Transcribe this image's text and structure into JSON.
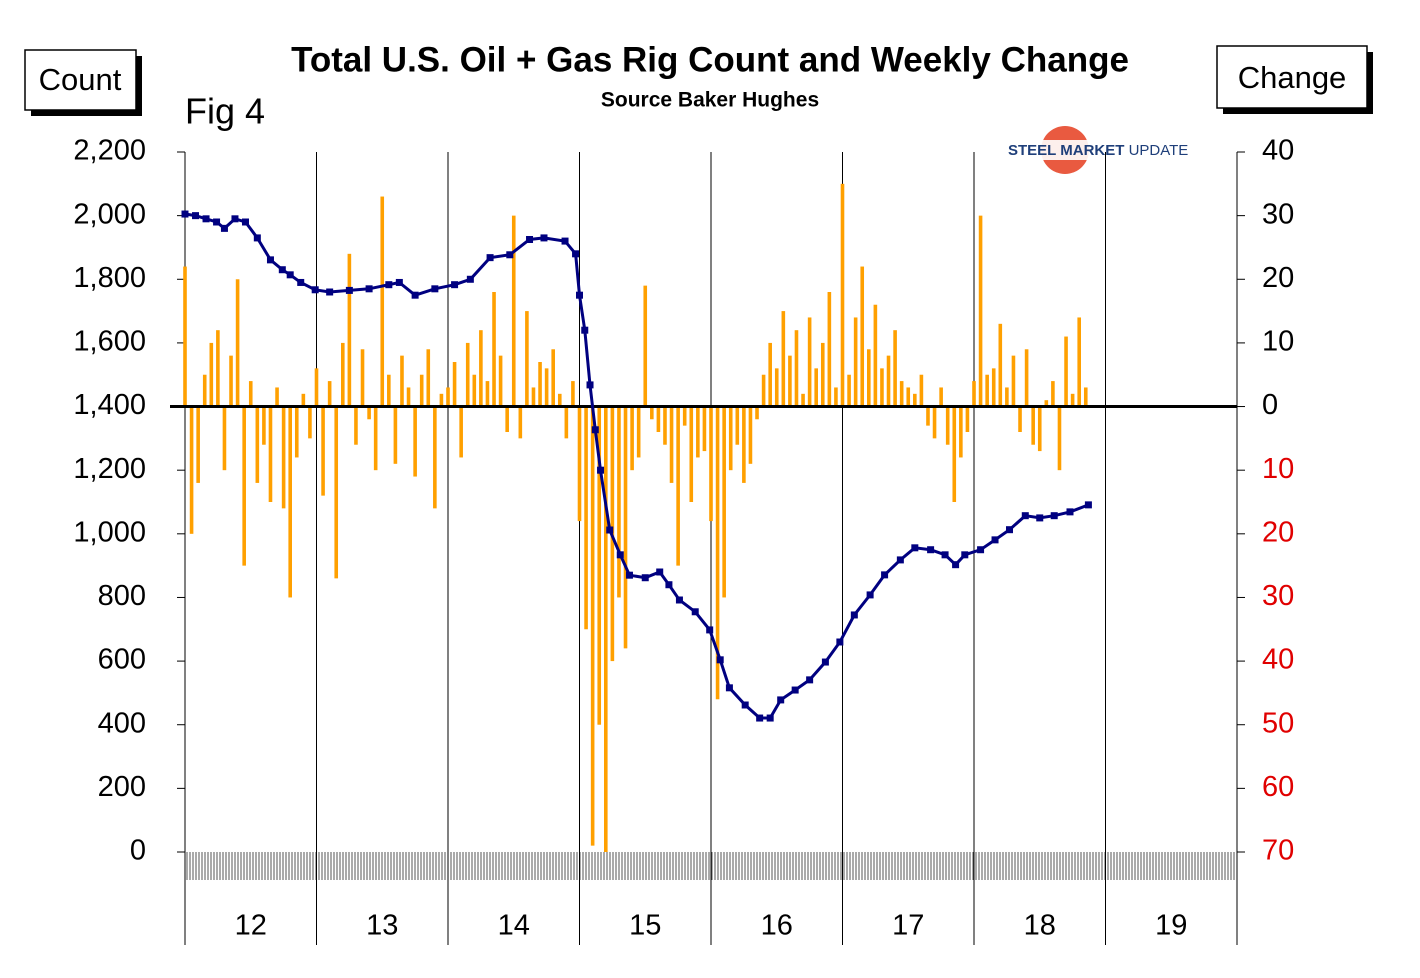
{
  "chart_data": {
    "type": "combo",
    "title": "Total U.S. Oil + Gas Rig Count and Weekly Change",
    "subtitle": "Source Baker Hughes",
    "figure_label": "Fig 4",
    "y_label": "Count",
    "y2_label": "Change",
    "logo": {
      "bold": "STEEL MARKET",
      "light": "UPDATE"
    },
    "xlim": [
      2012,
      2020
    ],
    "xticks": [
      {
        "value": 2012,
        "label": "12"
      },
      {
        "value": 2013,
        "label": "13"
      },
      {
        "value": 2014,
        "label": "14"
      },
      {
        "value": 2015,
        "label": "15"
      },
      {
        "value": 2016,
        "label": "16"
      },
      {
        "value": 2017,
        "label": "17"
      },
      {
        "value": 2018,
        "label": "18"
      },
      {
        "value": 2019,
        "label": "19"
      }
    ],
    "ylim": [
      0,
      2200
    ],
    "yticks": [
      0,
      200,
      400,
      600,
      800,
      {
        "value": 1000,
        "label": "1,000"
      },
      {
        "value": 1200,
        "label": "1,200"
      },
      {
        "value": 1400,
        "label": "1,400"
      },
      {
        "value": 1600,
        "label": "1,600"
      },
      {
        "value": 1800,
        "label": "1,800"
      },
      {
        "value": 2000,
        "label": "2,000"
      },
      {
        "value": 2200,
        "label": "2,200"
      }
    ],
    "y2lim": [
      -70,
      40
    ],
    "y2ticks": [
      40,
      30,
      20,
      10,
      0,
      {
        "value": -10,
        "label": "10"
      },
      {
        "value": -20,
        "label": "20"
      },
      {
        "value": -30,
        "label": "30"
      },
      {
        "value": -40,
        "label": "40"
      },
      {
        "value": -50,
        "label": "50"
      },
      {
        "value": -60,
        "label": "60"
      },
      {
        "value": -70,
        "label": "70"
      }
    ],
    "series": [
      {
        "type": "bar",
        "axis": "y2",
        "color": "#ffa000",
        "x": [
          2012.0,
          2012.05,
          2012.1,
          2012.15,
          2012.2,
          2012.25,
          2012.3,
          2012.35,
          2012.4,
          2012.45,
          2012.5,
          2012.55,
          2012.6,
          2012.65,
          2012.7,
          2012.75,
          2012.8,
          2012.85,
          2012.9,
          2012.95,
          2013.0,
          2013.05,
          2013.1,
          2013.15,
          2013.2,
          2013.25,
          2013.3,
          2013.35,
          2013.4,
          2013.45,
          2013.5,
          2013.55,
          2013.6,
          2013.65,
          2013.7,
          2013.75,
          2013.8,
          2013.85,
          2013.9,
          2013.95,
          2014.0,
          2014.05,
          2014.1,
          2014.15,
          2014.2,
          2014.25,
          2014.3,
          2014.35,
          2014.4,
          2014.45,
          2014.5,
          2014.55,
          2014.6,
          2014.65,
          2014.7,
          2014.75,
          2014.8,
          2014.85,
          2014.9,
          2014.95,
          2015.0,
          2015.05,
          2015.1,
          2015.15,
          2015.2,
          2015.25,
          2015.3,
          2015.35,
          2015.4,
          2015.45,
          2015.5,
          2015.55,
          2015.6,
          2015.65,
          2015.7,
          2015.75,
          2015.8,
          2015.85,
          2015.9,
          2015.95,
          2016.0,
          2016.05,
          2016.1,
          2016.15,
          2016.2,
          2016.25,
          2016.3,
          2016.35,
          2016.4,
          2016.45,
          2016.5,
          2016.55,
          2016.6,
          2016.65,
          2016.7,
          2016.75,
          2016.8,
          2016.85,
          2016.9,
          2016.95,
          2017.0,
          2017.05,
          2017.1,
          2017.15,
          2017.2,
          2017.25,
          2017.3,
          2017.35,
          2017.4,
          2017.45,
          2017.5,
          2017.55,
          2017.6,
          2017.65,
          2017.7,
          2017.75,
          2017.8,
          2017.85,
          2017.9,
          2017.95,
          2018.0,
          2018.05,
          2018.1,
          2018.15,
          2018.2,
          2018.25,
          2018.3,
          2018.35,
          2018.4,
          2018.45,
          2018.5,
          2018.55,
          2018.6,
          2018.65,
          2018.7,
          2018.75,
          2018.8,
          2018.85
        ],
        "values": [
          22,
          -20,
          -12,
          5,
          10,
          12,
          -10,
          8,
          20,
          -25,
          4,
          -12,
          -6,
          -15,
          3,
          -16,
          -30,
          -8,
          2,
          -5,
          6,
          -14,
          4,
          -27,
          10,
          24,
          -6,
          9,
          -2,
          -10,
          33,
          5,
          -9,
          8,
          3,
          -11,
          5,
          9,
          -16,
          2,
          3,
          7,
          -8,
          10,
          5,
          12,
          4,
          18,
          8,
          -4,
          30,
          -5,
          15,
          3,
          7,
          6,
          9,
          2,
          -5,
          4,
          -18,
          -35,
          -69,
          -50,
          -70,
          -40,
          -30,
          -38,
          -10,
          -8,
          19,
          -2,
          -4,
          -6,
          -12,
          -25,
          -3,
          -15,
          -8,
          -7,
          -18,
          -46,
          -30,
          -10,
          -6,
          -12,
          -9,
          -2,
          5,
          10,
          6,
          15,
          8,
          12,
          2,
          14,
          6,
          10,
          18,
          3,
          35,
          5,
          14,
          22,
          9,
          16,
          6,
          8,
          12,
          4,
          3,
          2,
          5,
          -3,
          -5,
          3,
          -6,
          -15,
          -8,
          -4,
          4,
          30,
          5,
          6,
          13,
          3,
          8,
          -4,
          9,
          -6,
          -7,
          1,
          4,
          -10,
          11,
          2,
          14,
          3
        ]
      },
      {
        "type": "line",
        "color": "#000080",
        "x": [
          2012.0,
          2012.08,
          2012.16,
          2012.24,
          2012.3,
          2012.38,
          2012.46,
          2012.55,
          2012.65,
          2012.74,
          2012.8,
          2012.88,
          2012.99,
          2013.1,
          2013.25,
          2013.4,
          2013.55,
          2013.63,
          2013.75,
          2013.9,
          2014.05,
          2014.17,
          2014.32,
          2014.47,
          2014.62,
          2014.73,
          2014.89,
          2014.97,
          2015.0,
          2015.04,
          2015.08,
          2015.12,
          2015.16,
          2015.23,
          2015.31,
          2015.38,
          2015.5,
          2015.61,
          2015.68,
          2015.76,
          2015.88,
          2015.99,
          2016.07,
          2016.14,
          2016.26,
          2016.37,
          2016.45,
          2016.53,
          2016.64,
          2016.75,
          2016.87,
          2016.98,
          2017.09,
          2017.21,
          2017.32,
          2017.44,
          2017.55,
          2017.67,
          2017.78,
          2017.86,
          2017.93,
          2018.05,
          2018.16,
          2018.27,
          2018.39,
          2018.5,
          2018.61,
          2018.73,
          2018.87
        ],
        "values": [
          2005,
          2000,
          1990,
          1980,
          1960,
          1990,
          1980,
          1930,
          1861,
          1830,
          1814,
          1790,
          1767,
          1760,
          1765,
          1770,
          1783,
          1790,
          1750,
          1770,
          1783,
          1800,
          1868,
          1877,
          1925,
          1930,
          1920,
          1880,
          1750,
          1640,
          1468,
          1327,
          1200,
          1012,
          934,
          870,
          862,
          880,
          840,
          792,
          755,
          698,
          604,
          516,
          462,
          421,
          421,
          478,
          509,
          541,
          597,
          660,
          745,
          808,
          871,
          918,
          956,
          950,
          934,
          903,
          934,
          950,
          981,
          1013,
          1057,
          1050,
          1057,
          1069,
          1091
        ]
      }
    ]
  }
}
